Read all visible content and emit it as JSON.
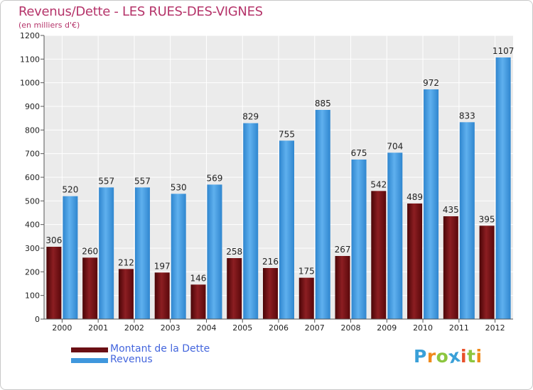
{
  "title": "Revenus/Dette - LES RUES-DES-VIGNES",
  "subtitle": "(en milliers d'€)",
  "logo": {
    "letters": [
      "P",
      "r",
      "o",
      "x",
      "i",
      "t",
      "i"
    ],
    "colors": [
      "#3aa0d8",
      "#f08a1c",
      "#8cc63f",
      "#3aa0d8",
      "#e8502a",
      "#8cc63f",
      "#f08a1c"
    ]
  },
  "legend": [
    {
      "label": "Montant de la Dette",
      "color": "#6b0f14"
    },
    {
      "label": "Revenus",
      "color": "#3f97dd"
    }
  ],
  "chart_data": {
    "type": "bar",
    "title": "Revenus/Dette - LES RUES-DES-VIGNES",
    "subtitle": "(en milliers d'€)",
    "categories": [
      "2000",
      "2001",
      "2002",
      "2003",
      "2004",
      "2005",
      "2006",
      "2007",
      "2008",
      "2009",
      "2010",
      "2011",
      "2012"
    ],
    "series": [
      {
        "name": "Montant de la Dette",
        "color": "#6b0f14",
        "values": [
          306,
          260,
          212,
          197,
          146,
          258,
          216,
          175,
          267,
          542,
          489,
          435,
          395
        ]
      },
      {
        "name": "Revenus",
        "color": "#3f97dd",
        "values": [
          520,
          557,
          557,
          530,
          569,
          829,
          755,
          885,
          675,
          704,
          972,
          833,
          1107
        ]
      }
    ],
    "ylim": [
      0,
      1200
    ],
    "yticks": [
      0,
      100,
      200,
      300,
      400,
      500,
      600,
      700,
      800,
      900,
      1000,
      1100,
      1200
    ],
    "grid": true,
    "legend_position": "bottom-left"
  }
}
